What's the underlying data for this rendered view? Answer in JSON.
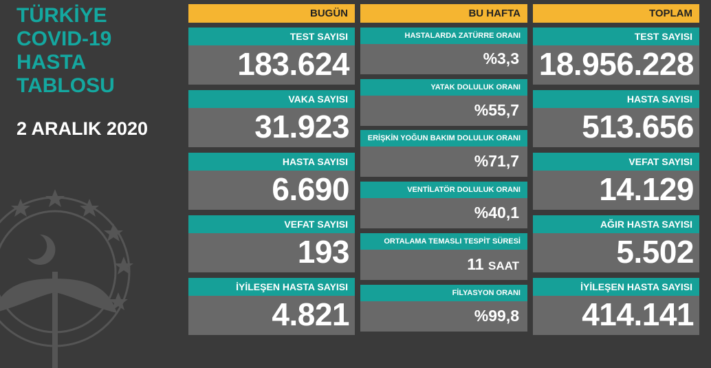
{
  "title_lines": [
    "TÜRKİYE",
    "COVID-19",
    "HASTA",
    "TABLOSU"
  ],
  "date": "2 ARALIK 2020",
  "colors": {
    "accent": "#16a098",
    "header": "#f5b531",
    "card": "#696969",
    "background": "#3a3a3a"
  },
  "today": {
    "header": "BUGÜN",
    "cards": [
      {
        "label": "TEST SAYISI",
        "value": "183.624"
      },
      {
        "label": "VAKA SAYISI",
        "value": "31.923"
      },
      {
        "label": "HASTA SAYISI",
        "value": "6.690"
      },
      {
        "label": "VEFAT SAYISI",
        "value": "193"
      },
      {
        "label": "İYİLEŞEN HASTA SAYISI",
        "value": "4.821"
      }
    ]
  },
  "week": {
    "header": "BU HAFTA",
    "cards": [
      {
        "label": "HASTALARDA ZATÜRRE ORANI",
        "value": "%3,3"
      },
      {
        "label": "YATAK DOLULUK ORANI",
        "value": "%55,7"
      },
      {
        "label": "ERİŞKİN YOĞUN BAKIM DOLULUK ORANI",
        "value": "%71,7"
      },
      {
        "label": "VENTİLATÖR DOLULUK ORANI",
        "value": "%40,1"
      },
      {
        "label": "ORTALAMA TEMASLI TESPİT SÜRESİ",
        "value": "11",
        "unit": "SAAT"
      },
      {
        "label": "FİLYASYON ORANI",
        "value": "%99,8"
      }
    ]
  },
  "total": {
    "header": "TOPLAM",
    "cards": [
      {
        "label": "TEST SAYISI",
        "value": "18.956.228"
      },
      {
        "label": "HASTA SAYISI",
        "value": "513.656"
      },
      {
        "label": "VEFAT SAYISI",
        "value": "14.129"
      },
      {
        "label": "AĞIR HASTA SAYISI",
        "value": "5.502"
      },
      {
        "label": "İYİLEŞEN HASTA SAYISI",
        "value": "414.141"
      }
    ]
  }
}
